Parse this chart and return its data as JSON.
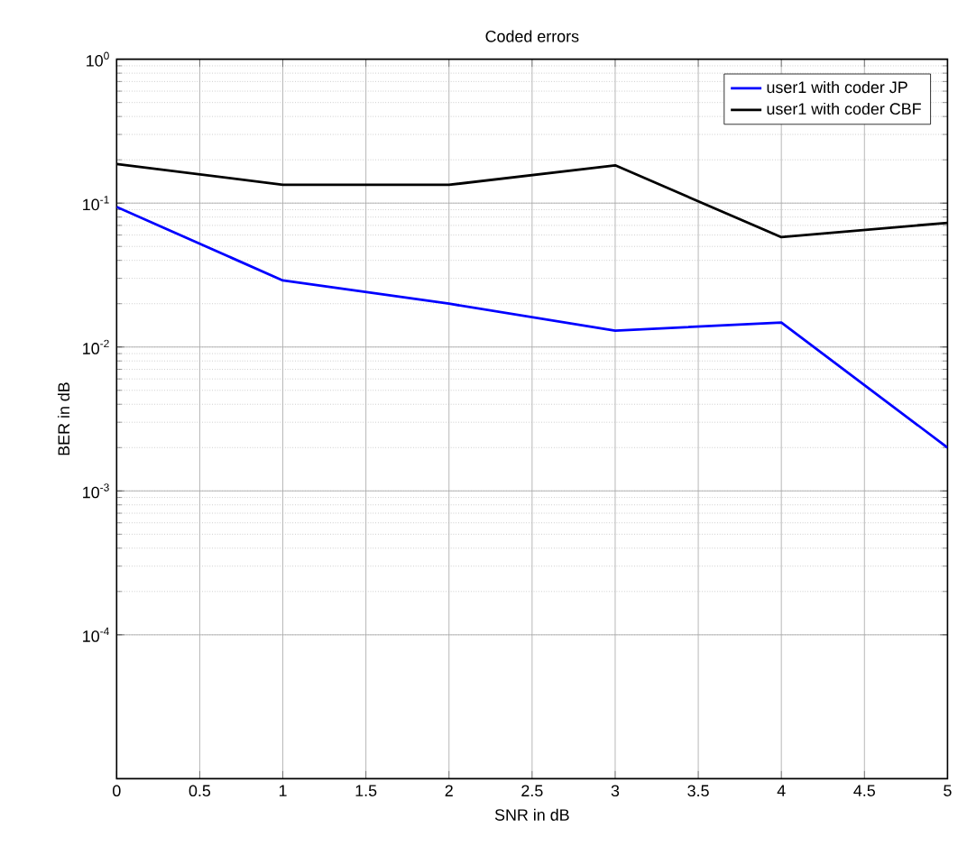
{
  "chart_data": {
    "type": "line",
    "title": "Coded  errors",
    "xlabel": "SNR in dB",
    "ylabel": "BER in dB",
    "x": [
      0,
      1,
      2,
      3,
      4,
      5
    ],
    "series": [
      {
        "name": "user1 with coder JP",
        "color": "#0000ff",
        "values": [
          0.094,
          0.029,
          0.02,
          0.013,
          0.0148,
          0.002
        ]
      },
      {
        "name": "user1 with coder CBF",
        "color": "#000000",
        "values": [
          0.187,
          0.134,
          0.134,
          0.183,
          0.058,
          0.073
        ]
      }
    ],
    "xlim": [
      0,
      5
    ],
    "xticks": [
      0,
      0.5,
      1,
      1.5,
      2,
      2.5,
      3,
      3.5,
      4,
      4.5,
      5
    ],
    "ylim": [
      1e-05,
      1
    ],
    "yticks": [
      {
        "value": 0.0001,
        "label": "10$^{-4}$"
      },
      {
        "value": 0.001,
        "label": "10$^{-3}$"
      },
      {
        "value": 0.01,
        "label": "10$^{-2}$"
      },
      {
        "value": 0.1,
        "label": "10$^{-1}$"
      },
      {
        "value": 1,
        "label": "10$^{0}$"
      }
    ],
    "log": "y",
    "grid": true,
    "legend": "top right",
    "marker": "none",
    "line_style": "solid"
  }
}
